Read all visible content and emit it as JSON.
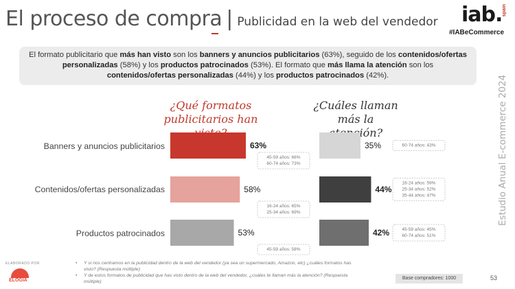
{
  "header": {
    "title_main": "El proceso de compra",
    "title_sep": "|",
    "title_sub": "Publicidad en la web del vendedor",
    "logo_text": "iab.",
    "logo_spain": "spain",
    "hashtag": "#IABeCommerce"
  },
  "summary": {
    "s1": "El formato publicitario que ",
    "b1": "más han visto",
    "s2": " son los ",
    "b2": "banners y anuncios publicitarios",
    "s3": " (63%), seguido de los ",
    "b3": "contenidos/ofertas personalizadas",
    "s4": " (58%) y los ",
    "b4": "productos patrocinados",
    "s5": " (53%). El formato que ",
    "b5": "más llama la atención",
    "s6": " son los ",
    "b6": "contenidos/ofertas personalizadas",
    "s7": " (44%) y los ",
    "b7": "productos patrocinados",
    "s8": " (42%)."
  },
  "side_label": "Estudio Anual E-commerce  2024",
  "chart_data": {
    "type": "bar",
    "orientation": "horizontal",
    "categories": [
      "Banners y anuncios publicitarios",
      "Contenidos/ofertas personalizadas",
      "Productos patrocinados"
    ],
    "series": [
      {
        "name": "¿Qué formatos publicitarios han visto?",
        "values": [
          63,
          58,
          53
        ],
        "labels": [
          "63%",
          "58%",
          "53%"
        ],
        "bold": [
          true,
          false,
          false
        ],
        "colors": [
          "#c8372d",
          "#e6a29c",
          "#a8a8a8"
        ],
        "annotations": [
          [
            "45-59 años: 66%",
            "60-74 años: 73%"
          ],
          [
            "16-24 años: 65%",
            "25-34 años: 69%"
          ],
          [
            "45-59 años: 58%"
          ]
        ]
      },
      {
        "name": "¿Cuáles llaman más la atención?",
        "values": [
          35,
          44,
          42
        ],
        "labels": [
          "35%",
          "44%",
          "42%"
        ],
        "bold": [
          false,
          true,
          true
        ],
        "colors": [
          "#d6d6d6",
          "#3f3f3f",
          "#6f6f6f"
        ],
        "annotations": [
          [
            "60-74 años: 43%"
          ],
          [
            "16-24 años: 59%",
            "25-34 años: 52%",
            "35-44 años: 47%"
          ],
          [
            "45-59 años: 45%",
            "60-74 años: 51%"
          ]
        ]
      }
    ],
    "title_left": [
      "¿Qué formatos",
      "publicitarios han visto?"
    ],
    "title_right": [
      "¿Cuáles llaman",
      "más la atención?"
    ],
    "xlim": [
      0,
      100
    ]
  },
  "footer": {
    "elaborado": "ELABORADO POR",
    "elogia": "ELOGIA",
    "note1": "Y si nos centramos en la publicidad dentro de la web del vendedor (ya sea un supermercado, Amazon, etc) ¿cuáles formatos has visto? (Respuesta múltiple)",
    "note2": "Y de estos formatos de publicidad que has visto dentro de la web del vendedor, ¿cuáles te llaman más la atención? (Respuesta múltiple)",
    "base": "Base compradores: 1000",
    "page": "53"
  }
}
